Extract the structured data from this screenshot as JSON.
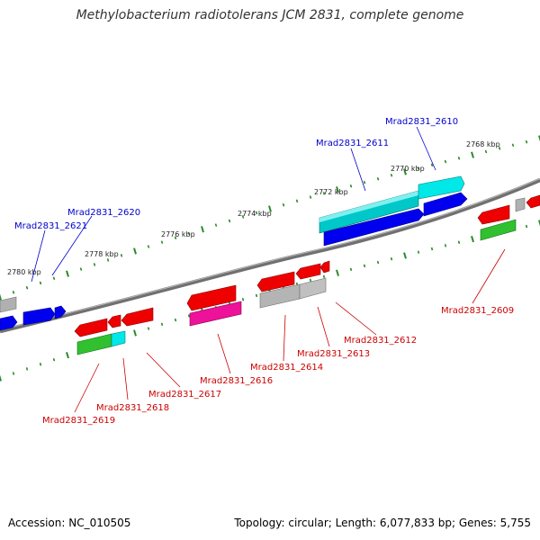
{
  "title": "Methylobacterium radiotolerans JCM 2831, complete genome",
  "footer": {
    "accession": "Accession: NC_010505",
    "topology": "Topology: circular; Length: 6,077,833 bp; Genes: 5,755"
  },
  "colors": {
    "backbone": "#808080",
    "tick_mark": "#2a8a2a",
    "forward_label": "#0000cc",
    "reverse_label": "#cc0000",
    "gene_red": "#ee0000",
    "gene_blue": "#0000ee",
    "gene_cyan": "#00e0e0",
    "gene_gray": "#b0b0b0",
    "gene_green": "#30c030",
    "gene_magenta": "#ee1199"
  },
  "kbp_labels": [
    "2768 kbp",
    "2770 kbp",
    "2772 kbp",
    "2774 kbp",
    "2776 kbp",
    "2778 kbp",
    "2780 kbp"
  ],
  "forward_gene_labels": [
    "Mrad2831_2610",
    "Mrad2831_2611",
    "Mrad2831_2620",
    "Mrad2831_2621"
  ],
  "reverse_gene_labels": [
    "Mrad2831_2609",
    "Mrad2831_2612",
    "Mrad2831_2613",
    "Mrad2831_2614",
    "Mrad2831_2616",
    "Mrad2831_2617",
    "Mrad2831_2618",
    "Mrad2831_2619"
  ]
}
